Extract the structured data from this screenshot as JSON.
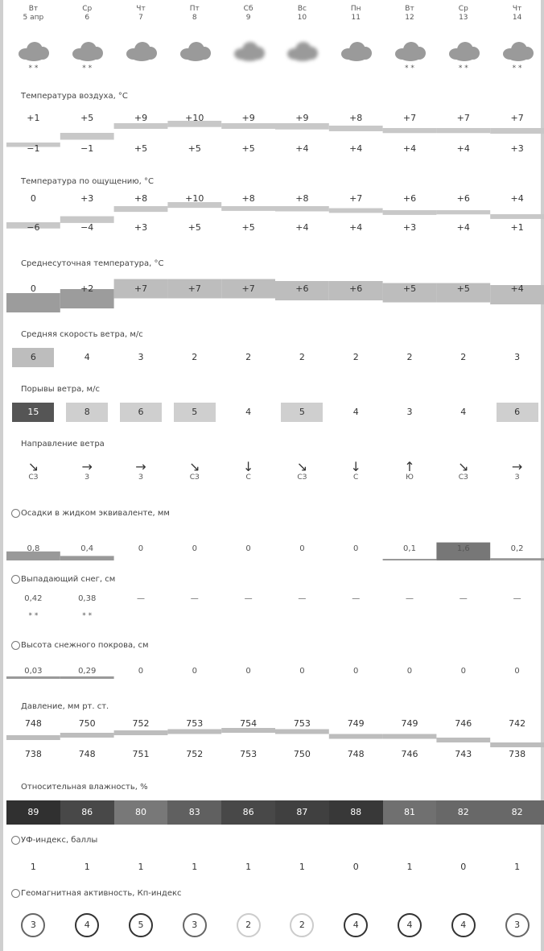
{
  "days": [
    {
      "dow": "Вт",
      "date": "5 апр"
    },
    {
      "dow": "Ср",
      "date": "6"
    },
    {
      "dow": "Чт",
      "date": "7"
    },
    {
      "dow": "Пт",
      "date": "8"
    },
    {
      "dow": "Сб",
      "date": "9"
    },
    {
      "dow": "Вс",
      "date": "10"
    },
    {
      "dow": "Пн",
      "date": "11"
    },
    {
      "dow": "Вт",
      "date": "12"
    },
    {
      "dow": "Ср",
      "date": "13"
    },
    {
      "dow": "Чт",
      "date": "14"
    }
  ],
  "labels": {
    "air_temp": "Температура воздуха, °C",
    "feels_like": "Температура по ощущению, °C",
    "daily_avg": "Среднесуточная температура, °C",
    "wind_avg": "Средняя скорость ветра, м/с",
    "wind_gust": "Порывы ветра, м/с",
    "wind_dir": "Направление ветра",
    "precip": "Осадки в жидком эквиваленте, мм",
    "snow_new": "Выпадающий снег, см",
    "snow_depth": "Высота снежного покрова, см",
    "pressure": "Давление, мм рт. ст.",
    "humidity": "Относительная влажность, %",
    "uv": "УФ-индекс, баллы",
    "pollen": "Геомагнитная активность, Кп-индекс"
  },
  "air_temp": {
    "max": [
      "+1",
      "+5",
      "+9",
      "+10",
      "+9",
      "+9",
      "+8",
      "+7",
      "+7",
      "+7"
    ],
    "min": [
      "−1",
      "−1",
      "+5",
      "+5",
      "+5",
      "+4",
      "+4",
      "+4",
      "+4",
      "+3"
    ]
  },
  "feels_like": {
    "max": [
      "0",
      "+3",
      "+8",
      "+10",
      "+8",
      "+8",
      "+7",
      "+6",
      "+6",
      "+4"
    ],
    "min": [
      "−6",
      "−4",
      "+3",
      "+5",
      "+5",
      "+4",
      "+4",
      "+3",
      "+4",
      "+1"
    ]
  },
  "daily_avg": [
    "0",
    "+2",
    "+7",
    "+7",
    "+7",
    "+6",
    "+6",
    "+5",
    "+5",
    "+4"
  ],
  "wind_avg": [
    "6",
    "4",
    "3",
    "2",
    "2",
    "2",
    "2",
    "2",
    "2",
    "3"
  ],
  "wind_gust": [
    "15",
    "8",
    "6",
    "5",
    "4",
    "5",
    "4",
    "3",
    "4",
    "6"
  ],
  "wind_dir": {
    "arrows": [
      "↘",
      "→",
      "→",
      "↘",
      "↓",
      "↘",
      "↓",
      "↑",
      "↘",
      "→"
    ],
    "codes": [
      "СЗ",
      "З",
      "З",
      "СЗ",
      "С",
      "СЗ",
      "С",
      "Ю",
      "СЗ",
      "З"
    ]
  },
  "precip": [
    "0,8",
    "0,4",
    "0",
    "0",
    "0",
    "0",
    "0",
    "0,1",
    "1,6",
    "0,2"
  ],
  "snow_new": [
    "0,42",
    "0,38",
    "—",
    "—",
    "—",
    "—",
    "—",
    "—",
    "—",
    "—"
  ],
  "snow_depth": [
    "0,03",
    "0,29",
    "0",
    "0",
    "0",
    "0",
    "0",
    "0",
    "0",
    "0"
  ],
  "pressure": {
    "max": [
      "748",
      "750",
      "752",
      "753",
      "754",
      "753",
      "749",
      "749",
      "746",
      "742"
    ],
    "min": [
      "738",
      "748",
      "751",
      "752",
      "753",
      "750",
      "748",
      "746",
      "743",
      "738"
    ]
  },
  "humidity": [
    "89",
    "86",
    "80",
    "83",
    "86",
    "87",
    "88",
    "81",
    "82",
    "82"
  ],
  "uv": [
    "1",
    "1",
    "1",
    "1",
    "1",
    "1",
    "0",
    "1",
    "0",
    "1"
  ],
  "pollen": [
    "3",
    "4",
    "5",
    "3",
    "2",
    "2",
    "4",
    "4",
    "4",
    "3"
  ]
}
